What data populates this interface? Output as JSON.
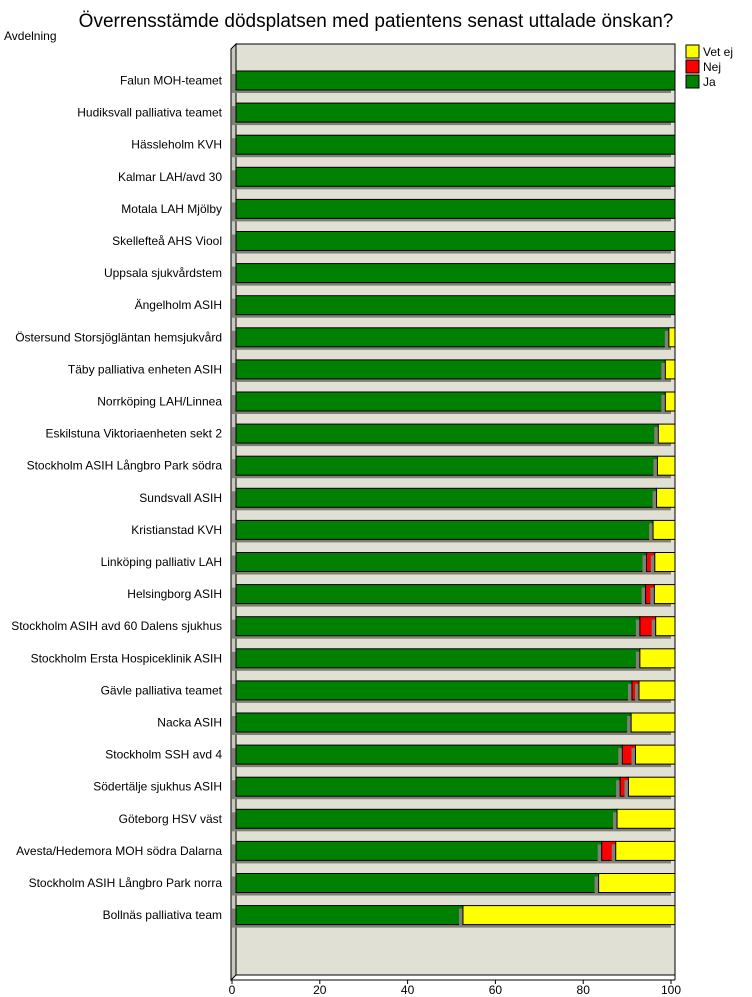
{
  "chart_data": {
    "type": "bar",
    "orientation": "horizontal",
    "stacked": true,
    "title": "Överrensstämde dödsplatsen med patientens senast uttalade önskan?",
    "ylabel": "Avdelning",
    "xlim": [
      0,
      100
    ],
    "x_ticks": [
      "0",
      "20",
      "40",
      "60",
      "80",
      "100"
    ],
    "grid": false,
    "legend_position": "top-right",
    "categories": [
      "Falun MOH-teamet",
      "Hudiksvall palliativa teamet",
      "Hässleholm KVH",
      "Kalmar LAH/avd 30",
      "Motala LAH Mjölby",
      "Skellefteå AHS Viool",
      "Uppsala sjukvårdstem",
      "Ängelholm ASIH",
      "Östersund Storsjögläntan hemsjukvård",
      "Täby palliativa enheten ASIH",
      "Norrköping LAH/Linnea",
      "Eskilstuna Viktoriaenheten sekt 2",
      "Stockholm ASIH Långbro Park södra",
      "Sundsvall ASIH",
      "Kristianstad KVH",
      "Linköping palliativ LAH",
      "Helsingborg ASIH",
      "Stockholm ASIH avd 60 Dalens sjukhus",
      "Stockholm Ersta Hospiceklinik ASIH",
      "Gävle palliativa teamet",
      "Nacka ASIH",
      "Stockholm SSH avd 4",
      "Södertälje sjukhus ASIH",
      "Göteborg HSV väst",
      "Avesta/Hedemora MOH södra Dalarna",
      "Stockholm ASIH Långbro Park norra",
      "Bollnäs palliativa team"
    ],
    "series": [
      {
        "name": "Ja",
        "color": "#008000",
        "values": [
          100,
          100,
          100,
          100,
          100,
          100,
          100,
          100,
          98.6,
          97.8,
          97.8,
          96.2,
          96.0,
          95.8,
          95.0,
          93.5,
          93.3,
          92.0,
          92.0,
          90.2,
          90.0,
          88.0,
          87.5,
          86.8,
          83.3,
          82.6,
          51.7
        ]
      },
      {
        "name": "Nej",
        "color": "#ff0000",
        "values": [
          0,
          0,
          0,
          0,
          0,
          0,
          0,
          0,
          0,
          0,
          0,
          0,
          0,
          0,
          0,
          1.9,
          2.0,
          3.6,
          0,
          1.6,
          0,
          3.0,
          1.9,
          0,
          3.2,
          0,
          0
        ]
      },
      {
        "name": "Vet ej",
        "color": "#ffff00",
        "values": [
          0,
          0,
          0,
          0,
          0,
          0,
          0,
          0,
          1.4,
          2.2,
          2.2,
          3.8,
          4.0,
          4.2,
          5.0,
          4.6,
          4.7,
          4.4,
          8.0,
          8.2,
          10.0,
          9.0,
          10.6,
          13.2,
          13.5,
          17.4,
          48.3
        ]
      }
    ],
    "legend": [
      {
        "label": "Vet ej",
        "color": "#ffff00"
      },
      {
        "label": "Nej",
        "color": "#ff0000"
      },
      {
        "label": "Ja",
        "color": "#008000"
      }
    ],
    "colors": {
      "plot_background": "#e0e0d4",
      "wall_side": "#c8c8bc",
      "bar_outline": "#000000"
    }
  }
}
